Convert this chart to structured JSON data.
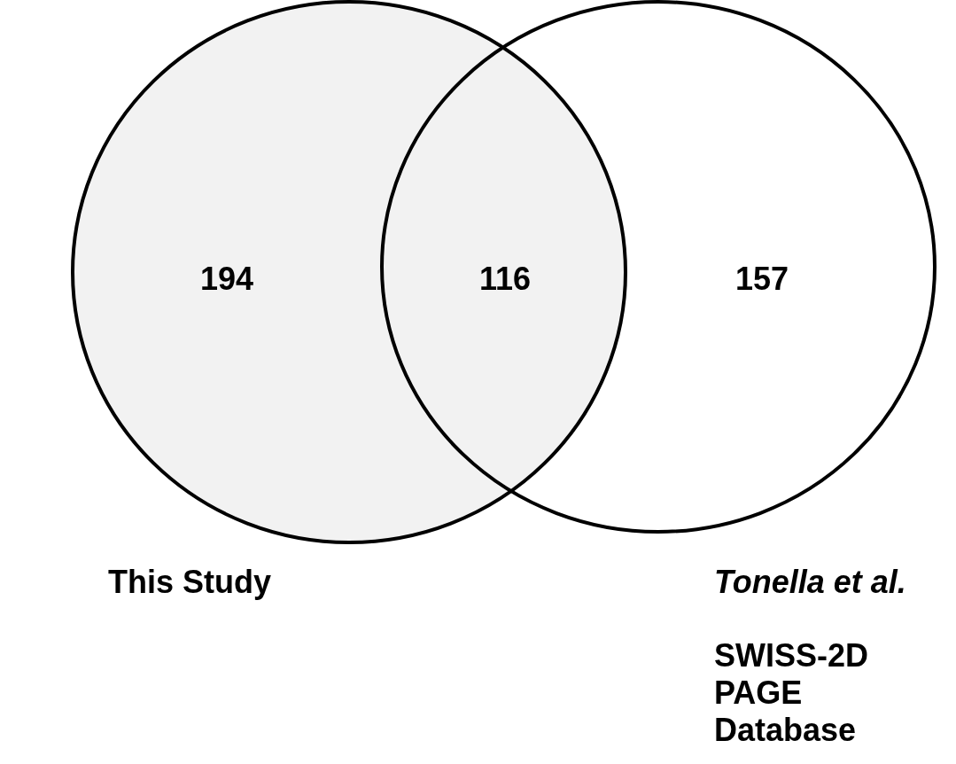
{
  "chart_data": {
    "type": "other",
    "categories": [
      null,
      null,
      null
    ],
    "values": [
      194,
      116,
      157
    ],
    "colors": [
      "#f2f2f2",
      "#f2f2f2",
      "#ffffff"
    ],
    "data_labels": true,
    "annotations": [
      "This Study",
      "Tonella et al.",
      "SWISS-2D PAGE Database"
    ]
  }
}
